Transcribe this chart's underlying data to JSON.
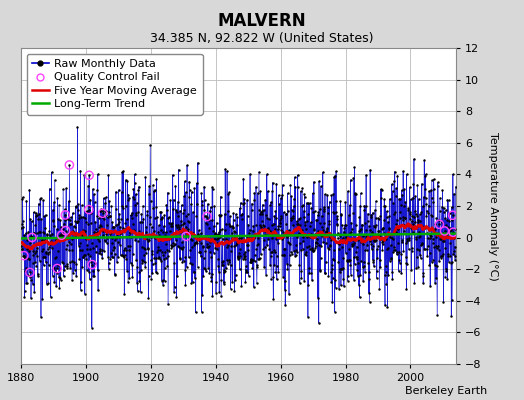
{
  "title": "MALVERN",
  "subtitle": "34.385 N, 92.822 W (United States)",
  "ylabel": "Temperature Anomaly (°C)",
  "attribution": "Berkeley Earth",
  "xlim": [
    1880,
    2014
  ],
  "ylim": [
    -8,
    12
  ],
  "yticks": [
    -8,
    -6,
    -4,
    -2,
    0,
    2,
    4,
    6,
    8,
    10,
    12
  ],
  "xticks": [
    1880,
    1900,
    1920,
    1940,
    1960,
    1980,
    2000
  ],
  "raw_color": "#0000cc",
  "moving_avg_color": "#dd0000",
  "trend_color": "#00aa00",
  "qc_fail_color": "#ff44ff",
  "bg_outer": "#d8d8d8",
  "bg_inner": "#ffffff",
  "grid_color": "#bbbbbb",
  "seed": 42,
  "start_year": 1880,
  "end_year": 2013,
  "title_fontsize": 12,
  "subtitle_fontsize": 9,
  "ylabel_fontsize": 8,
  "tick_fontsize": 8,
  "legend_fontsize": 8,
  "attribution_fontsize": 8
}
